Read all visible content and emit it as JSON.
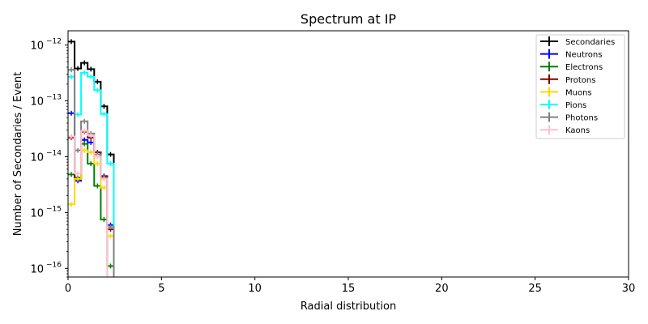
{
  "chart_data": {
    "type": "line",
    "title": "Spectrum at IP",
    "xlabel": "Radial distribution",
    "ylabel": "Number of Secondaries / Event",
    "xlim": [
      0,
      30
    ],
    "ylim": [
      7e-17,
      1.8e-12
    ],
    "yscale": "log",
    "grid": false,
    "legend_position": "top-right",
    "x_ticks": [
      0,
      5,
      10,
      15,
      20,
      25,
      30
    ],
    "x_tick_labels": [
      "0",
      "5",
      "10",
      "15",
      "20",
      "25",
      "30"
    ],
    "y_ticks": [
      1e-16,
      1e-15,
      1e-14,
      1e-13,
      1e-12
    ],
    "y_tick_bases": [
      "10",
      "10",
      "10",
      "10",
      "10"
    ],
    "y_tick_exponents": [
      "−16",
      "−15",
      "−14",
      "−13",
      "−12"
    ],
    "x_bin_edges": [
      0,
      0.35,
      0.7,
      1.05,
      1.4,
      1.75,
      2.1,
      2.45
    ],
    "series": [
      {
        "name": "Secondaries",
        "color": "#000000",
        "values": [
          1.15e-12,
          3.8e-13,
          4.8e-13,
          3.7e-13,
          2.2e-13,
          8e-14,
          1.1e-14
        ]
      },
      {
        "name": "Neutrons",
        "color": "#0000ff",
        "values": [
          6e-14,
          3.7e-15,
          2e-14,
          1.8e-14,
          1.2e-14,
          4.5e-15,
          6e-16
        ]
      },
      {
        "name": "Electrons",
        "color": "#008000",
        "values": [
          4.8e-15,
          4.2e-15,
          1.7e-14,
          7.5e-15,
          3e-15,
          7.5e-16,
          1.1e-16
        ]
      },
      {
        "name": "Protons",
        "color": "#800000",
        "values": [
          2.2e-14,
          4e-15,
          2.8e-14,
          2.2e-14,
          1.2e-14,
          4.4e-15,
          5e-16
        ]
      },
      {
        "name": "Muons",
        "color": "#ffd700",
        "values": [
          1.4e-15,
          4e-15,
          1.3e-14,
          1.2e-14,
          7.5e-15,
          2.8e-15,
          3.8e-16
        ]
      },
      {
        "name": "Pions",
        "color": "#00ffff",
        "values": [
          2.7e-13,
          5.7e-14,
          3.2e-13,
          2.7e-13,
          1.55e-13,
          5.8e-14,
          7.5e-15
        ]
      },
      {
        "name": "Photons",
        "color": "#808080",
        "values": [
          3.6e-13,
          1.3e-14,
          4.3e-14,
          2.6e-14,
          1.1e-14,
          4.2e-15,
          5.5e-16
        ]
      },
      {
        "name": "Kaons",
        "color": "#ffc0cb",
        "values": [
          2.3e-14,
          5e-15,
          2.9e-14,
          2.4e-14,
          1e-14,
          4e-15,
          5e-17
        ]
      }
    ]
  }
}
